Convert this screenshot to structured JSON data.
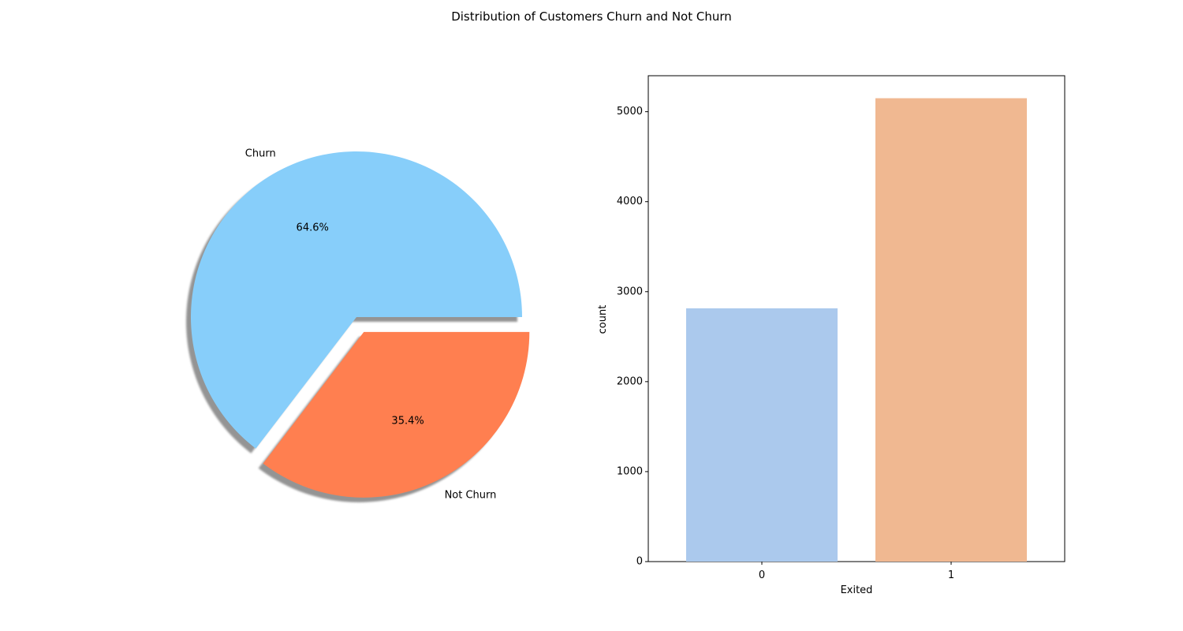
{
  "figure": {
    "title": "Distribution of Customers Churn and Not Churn"
  },
  "chart_data": [
    {
      "type": "pie",
      "labels": [
        "Churn",
        "Not Churn"
      ],
      "values": [
        64.6,
        35.4
      ],
      "autopct_labels": [
        "64.6%",
        "35.4%"
      ],
      "explode": [
        0,
        0.1
      ],
      "shadow": true,
      "colors": [
        "#87CEFA",
        "#FF7F50"
      ]
    },
    {
      "type": "bar",
      "categories": [
        "0",
        "1"
      ],
      "values": [
        2815,
        5150
      ],
      "xlabel": "Exited",
      "ylabel": "count",
      "ylim": [
        0,
        5400
      ],
      "yticks": [
        0,
        1000,
        2000,
        3000,
        4000,
        5000
      ],
      "colors": [
        "#abc9ed",
        "#f0b891"
      ],
      "grid": false
    }
  ]
}
